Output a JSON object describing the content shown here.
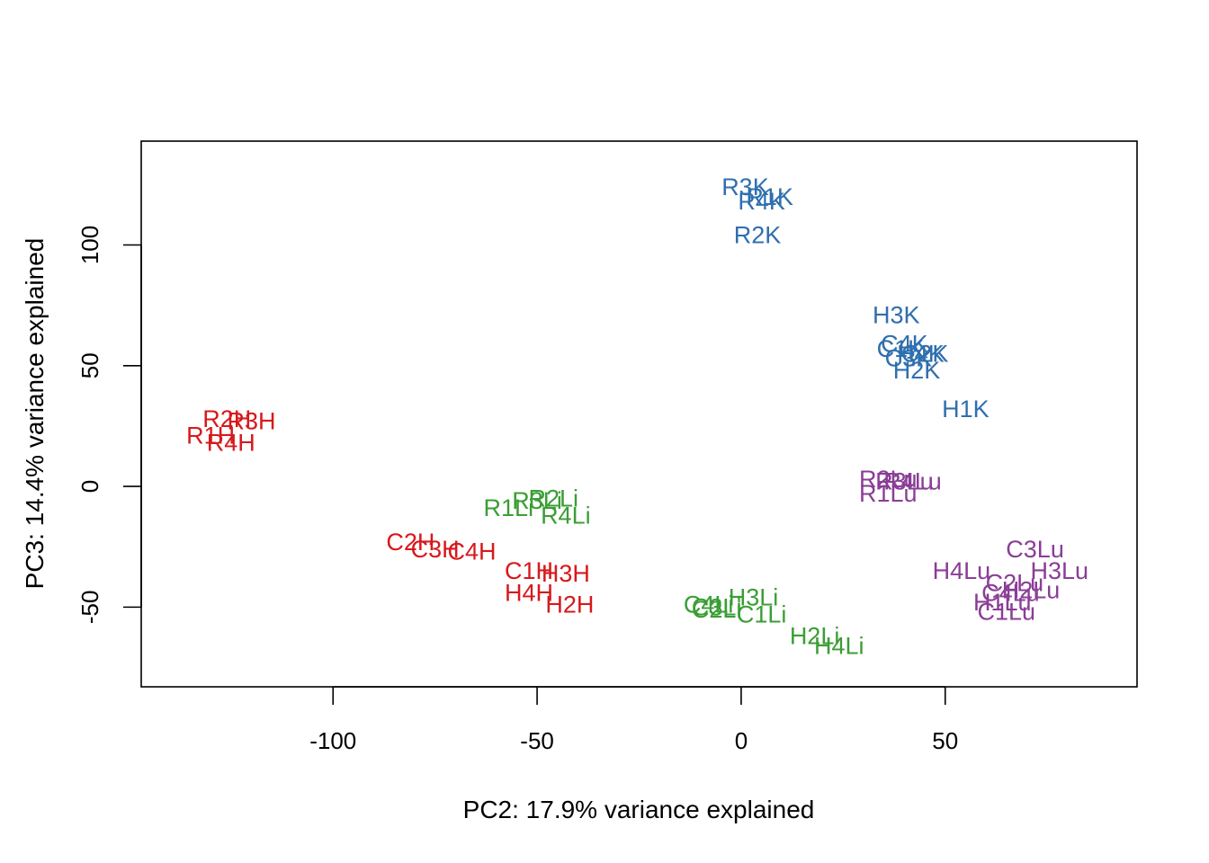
{
  "chart_data": {
    "type": "scatter",
    "title": "",
    "xlabel": "PC2: 17.9% variance explained",
    "ylabel": "PC3: 14.4% variance explained",
    "xlim": [
      -147,
      97
    ],
    "ylim": [
      -83,
      143
    ],
    "xticks": [
      -100,
      -50,
      0,
      50
    ],
    "yticks": [
      -50,
      0,
      50,
      100
    ],
    "grid": false,
    "legend": "none",
    "colors": {
      "H": "#d7191c",
      "Li": "#3a9e34",
      "K": "#2f6fae",
      "Lu": "#8a3d96"
    },
    "points": [
      {
        "label": "R2H",
        "x": -126,
        "y": 28,
        "group": "H"
      },
      {
        "label": "R3H",
        "x": -120,
        "y": 27,
        "group": "H"
      },
      {
        "label": "R1H",
        "x": -130,
        "y": 21,
        "group": "H"
      },
      {
        "label": "R4H",
        "x": -125,
        "y": 18,
        "group": "H"
      },
      {
        "label": "C2H",
        "x": -81,
        "y": -23,
        "group": "H"
      },
      {
        "label": "C3H",
        "x": -75,
        "y": -26,
        "group": "H"
      },
      {
        "label": "C4H",
        "x": -66,
        "y": -27,
        "group": "H"
      },
      {
        "label": "C1H",
        "x": -52,
        "y": -35,
        "group": "H"
      },
      {
        "label": "H3H",
        "x": -43,
        "y": -36,
        "group": "H"
      },
      {
        "label": "H4H",
        "x": -52,
        "y": -44,
        "group": "H"
      },
      {
        "label": "H2H",
        "x": -42,
        "y": -49,
        "group": "H"
      },
      {
        "label": "R2Li",
        "x": -46,
        "y": -5,
        "group": "Li"
      },
      {
        "label": "R3Li",
        "x": -50,
        "y": -6,
        "group": "Li"
      },
      {
        "label": "R1Li",
        "x": -57,
        "y": -9,
        "group": "Li"
      },
      {
        "label": "R4Li",
        "x": -43,
        "y": -12,
        "group": "Li"
      },
      {
        "label": "H3Li",
        "x": 3,
        "y": -46,
        "group": "Li"
      },
      {
        "label": "C4Li",
        "x": -8,
        "y": -49,
        "group": "Li"
      },
      {
        "label": "C3Li",
        "x": -6,
        "y": -50,
        "group": "Li"
      },
      {
        "label": "C2Li",
        "x": -6,
        "y": -51,
        "group": "Li"
      },
      {
        "label": "C1Li",
        "x": 5,
        "y": -53,
        "group": "Li"
      },
      {
        "label": "H2Li",
        "x": 18,
        "y": -62,
        "group": "Li"
      },
      {
        "label": "H4Li",
        "x": 24,
        "y": -66,
        "group": "Li"
      },
      {
        "label": "R3K",
        "x": 1,
        "y": 124,
        "group": "K"
      },
      {
        "label": "R1K",
        "x": 7,
        "y": 120,
        "group": "K"
      },
      {
        "label": "R4K",
        "x": 5,
        "y": 118,
        "group": "K"
      },
      {
        "label": "R2K",
        "x": 4,
        "y": 104,
        "group": "K"
      },
      {
        "label": "H3K",
        "x": 38,
        "y": 71,
        "group": "K"
      },
      {
        "label": "C4K",
        "x": 40,
        "y": 59,
        "group": "K"
      },
      {
        "label": "C1K",
        "x": 39,
        "y": 57,
        "group": "K"
      },
      {
        "label": "H4K",
        "x": 44,
        "y": 55,
        "group": "K"
      },
      {
        "label": "C2K",
        "x": 45,
        "y": 55,
        "group": "K"
      },
      {
        "label": "C3K",
        "x": 41,
        "y": 53,
        "group": "K"
      },
      {
        "label": "H2K",
        "x": 43,
        "y": 48,
        "group": "K"
      },
      {
        "label": "H1K",
        "x": 55,
        "y": 32,
        "group": "K"
      },
      {
        "label": "R2Lu",
        "x": 36,
        "y": 3,
        "group": "Lu"
      },
      {
        "label": "R3Lu",
        "x": 40,
        "y": 2,
        "group": "Lu"
      },
      {
        "label": "R4Lu",
        "x": 42,
        "y": 2,
        "group": "Lu"
      },
      {
        "label": "R1Lu",
        "x": 36,
        "y": -3,
        "group": "Lu"
      },
      {
        "label": "C3Lu",
        "x": 72,
        "y": -26,
        "group": "Lu"
      },
      {
        "label": "H4Lu",
        "x": 54,
        "y": -35,
        "group": "Lu"
      },
      {
        "label": "H3Lu",
        "x": 78,
        "y": -35,
        "group": "Lu"
      },
      {
        "label": "C2Lu",
        "x": 67,
        "y": -40,
        "group": "Lu"
      },
      {
        "label": "H2Lu",
        "x": 71,
        "y": -43,
        "group": "Lu"
      },
      {
        "label": "C4Lu",
        "x": 66,
        "y": -44,
        "group": "Lu"
      },
      {
        "label": "H1Lu",
        "x": 64,
        "y": -48,
        "group": "Lu"
      },
      {
        "label": "C1Lu",
        "x": 65,
        "y": -52,
        "group": "Lu"
      }
    ]
  }
}
